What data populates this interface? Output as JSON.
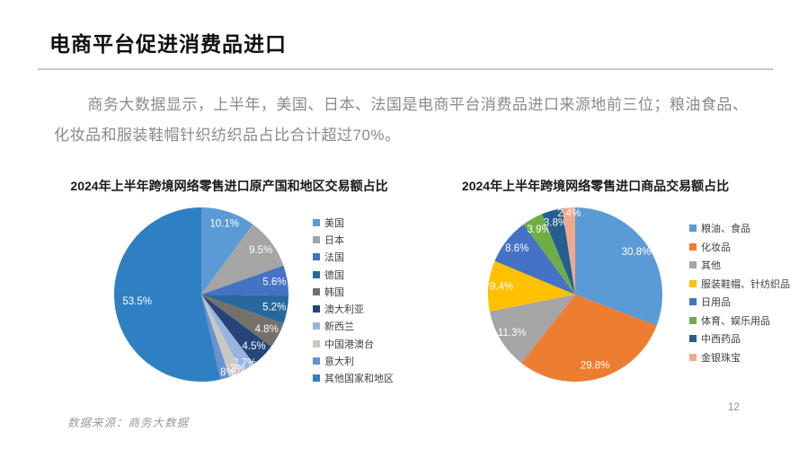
{
  "header": {
    "title": "电商平台促进消费品进口"
  },
  "body": {
    "paragraph": "商务大数据显示，上半年，美国、日本、法国是电商平台消费品进口来源地前三位；粮油食品、化妆品和服装鞋帽针织纺织品占比合计超过70%。"
  },
  "footer": {
    "source": "数据来源：商务大数据",
    "page_number": "12"
  },
  "chart_data": [
    {
      "type": "pie",
      "title": "2024年上半年跨境网络零售进口原产国和地区交易额占比",
      "legend_position": "right",
      "start_angle_deg": 0,
      "categories": [
        "美国",
        "日本",
        "法国",
        "德国",
        "韩国",
        "澳大利亚",
        "新西兰",
        "中国港澳台",
        "意大利",
        "其他国家和地区"
      ],
      "values": [
        10.1,
        9.5,
        5.6,
        5.2,
        4.8,
        4.5,
        2.7,
        2.3,
        1.8,
        53.5
      ],
      "labels": [
        "10.1%",
        "9.5%",
        "5.6%",
        "5.2%",
        "4.8%",
        "4.5%",
        "2.7%",
        "2.3%",
        "1.8%",
        "53.5%"
      ],
      "colors": [
        "#5B9BD5",
        "#A5A5A5",
        "#4472C4",
        "#27699E",
        "#74716A",
        "#264478",
        "#98B5E0",
        "#CBC7C1",
        "#6A91D0",
        "#2E80C3"
      ],
      "label_color": "#FFFFFF"
    },
    {
      "type": "pie",
      "title": "2024年上半年跨境网络零售进口商品交易额占比",
      "legend_position": "right",
      "start_angle_deg": 0,
      "categories": [
        "粮油、食品",
        "化妆品",
        "其他",
        "服装鞋帽、针纺织品",
        "日用品",
        "体育、娱乐用品",
        "中西药品",
        "金银珠宝"
      ],
      "values": [
        30.8,
        29.8,
        11.3,
        9.4,
        8.6,
        3.9,
        3.8,
        2.4
      ],
      "labels": [
        "30.8%",
        "29.8%",
        "11.3%",
        "9.4%",
        "8.6%",
        "3.9%",
        "3.8%",
        "2.4%"
      ],
      "colors": [
        "#5B9BD5",
        "#ED7D31",
        "#A5A5A5",
        "#FFC000",
        "#4472C4",
        "#70AD47",
        "#255E91",
        "#F1A98C"
      ],
      "label_color": "#FFFFFF"
    }
  ]
}
